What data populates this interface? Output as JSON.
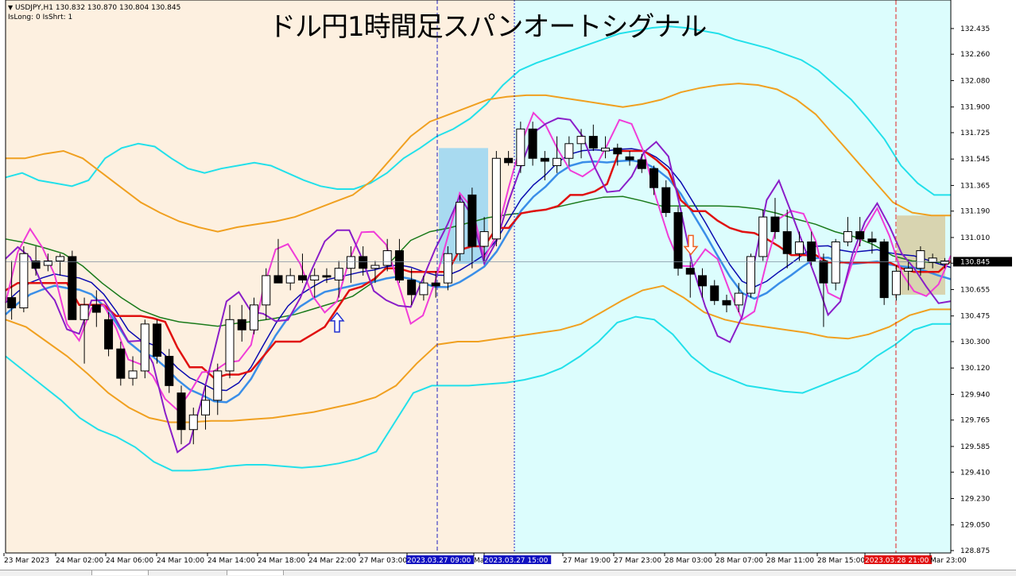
{
  "header": {
    "symbol_line": "USDJPY,H1  130.832 130.870 130.804 130.845",
    "signal_line": "IsLong: 0 IsShrt: 1",
    "menu_arrow": "triangle-down-icon"
  },
  "title": "ドル円1時間足スパンオートシグナル",
  "colors": {
    "bg_left": "#fdf0e0",
    "bg_right": "#dcfdfd",
    "candle_bull": "#ffffff",
    "candle_bear": "#000000",
    "band_outer": "#22e0ea",
    "band_mid": "#f0a020",
    "band_inner": "#1a7a1a",
    "baseline_red": "#e01010",
    "span_blue": "#3a8ee8",
    "navy": "#0b0bb0",
    "magenta": "#f03cd8",
    "purple": "#8a1ec8",
    "arrow_up": "#2030d0",
    "arrow_down": "#f06020"
  },
  "chart_data": {
    "type": "candlestick",
    "symbol": "USDJPY",
    "timeframe": "H1",
    "ylim": [
      128.875,
      132.6
    ],
    "y_ticks": [
      "132.435",
      "132.260",
      "132.080",
      "131.900",
      "131.725",
      "131.545",
      "131.365",
      "131.190",
      "131.010",
      "130.835",
      "130.655",
      "130.475",
      "130.300",
      "130.120",
      "129.940",
      "129.765",
      "129.585",
      "129.410",
      "129.230",
      "129.050",
      "128.875"
    ],
    "current_price": "130.845",
    "x_labels": [
      "23 Mar 2023",
      "24 Mar 02:00",
      "24 Mar 06:00",
      "24 Mar 10:00",
      "24 Mar 14:00",
      "24 Mar 18:00",
      "24 Mar 22:00",
      "27 Mar 03:00",
      "2023.03.27 09:00",
      "Ma",
      "2023.03.27 15:00",
      "27 Mar 19:00",
      "27 Mar 23:00",
      "28 Mar 03:00",
      "28 Mar 07:00",
      "28 Mar 11:00",
      "28 Mar 15:00",
      "2023.03.28 21:00",
      "Mar 23:00"
    ],
    "highlighted_x_labels": [
      {
        "label": "2023.03.27 09:00",
        "color": "#1010c0"
      },
      {
        "label": "2023.03.27 15:00",
        "color": "#1010c0"
      },
      {
        "label": "2023.03.28 21:00",
        "color": "#e01010"
      }
    ],
    "candles": [
      [
        130.6,
        130.85,
        130.45,
        130.53
      ],
      [
        130.53,
        130.95,
        130.5,
        130.9
      ],
      [
        130.85,
        130.95,
        130.75,
        130.8
      ],
      [
        130.82,
        130.9,
        130.78,
        130.85
      ],
      [
        130.85,
        130.9,
        130.75,
        130.88
      ],
      [
        130.88,
        130.92,
        130.45,
        130.45
      ],
      [
        130.45,
        130.6,
        130.15,
        130.55
      ],
      [
        130.55,
        130.65,
        130.4,
        130.5
      ],
      [
        130.45,
        130.5,
        130.2,
        130.25
      ],
      [
        130.25,
        130.3,
        130.0,
        130.05
      ],
      [
        130.05,
        130.2,
        130.0,
        130.1
      ],
      [
        130.1,
        130.45,
        130.05,
        130.42
      ],
      [
        130.42,
        130.45,
        130.15,
        130.2
      ],
      [
        130.2,
        130.25,
        129.95,
        130.0
      ],
      [
        129.95,
        130.0,
        129.6,
        129.7
      ],
      [
        129.7,
        129.85,
        129.6,
        129.8
      ],
      [
        129.8,
        130.0,
        129.7,
        129.9
      ],
      [
        129.9,
        130.15,
        129.8,
        130.1
      ],
      [
        130.1,
        130.55,
        130.05,
        130.45
      ],
      [
        130.45,
        130.55,
        130.3,
        130.38
      ],
      [
        130.38,
        130.6,
        130.35,
        130.55
      ],
      [
        130.55,
        130.8,
        130.45,
        130.75
      ],
      [
        130.75,
        131.0,
        130.7,
        130.7
      ],
      [
        130.7,
        130.8,
        130.65,
        130.75
      ],
      [
        130.75,
        130.9,
        130.7,
        130.72
      ],
      [
        130.72,
        130.8,
        130.6,
        130.75
      ],
      [
        130.75,
        130.8,
        130.7,
        130.74
      ],
      [
        130.72,
        130.85,
        130.6,
        130.8
      ],
      [
        130.8,
        130.95,
        130.7,
        130.88
      ],
      [
        130.88,
        130.95,
        130.75,
        130.8
      ],
      [
        130.8,
        130.85,
        130.7,
        130.82
      ],
      [
        130.82,
        131.0,
        130.78,
        130.92
      ],
      [
        130.92,
        131.0,
        130.7,
        130.72
      ],
      [
        130.72,
        130.8,
        130.55,
        130.62
      ],
      [
        130.62,
        130.75,
        130.58,
        130.7
      ],
      [
        130.7,
        130.78,
        130.6,
        130.68
      ],
      [
        130.7,
        130.95,
        130.65,
        130.9
      ],
      [
        130.9,
        131.3,
        130.85,
        131.25
      ],
      [
        131.3,
        131.35,
        130.8,
        130.95
      ],
      [
        130.95,
        131.15,
        130.85,
        131.05
      ],
      [
        131.0,
        131.6,
        130.95,
        131.55
      ],
      [
        131.55,
        131.6,
        131.5,
        131.52
      ],
      [
        131.5,
        131.8,
        131.45,
        131.75
      ],
      [
        131.75,
        131.8,
        131.5,
        131.55
      ],
      [
        131.55,
        131.6,
        131.4,
        131.53
      ],
      [
        131.5,
        131.7,
        131.45,
        131.55
      ],
      [
        131.55,
        131.7,
        131.5,
        131.65
      ],
      [
        131.65,
        131.75,
        131.55,
        131.7
      ],
      [
        131.7,
        131.78,
        131.6,
        131.62
      ],
      [
        131.6,
        131.7,
        131.55,
        131.62
      ],
      [
        131.62,
        131.65,
        131.5,
        131.58
      ],
      [
        131.56,
        131.6,
        131.5,
        131.54
      ],
      [
        131.54,
        131.58,
        131.45,
        131.48
      ],
      [
        131.48,
        131.5,
        131.3,
        131.35
      ],
      [
        131.35,
        131.4,
        131.15,
        131.18
      ],
      [
        131.18,
        131.22,
        130.75,
        130.8
      ],
      [
        130.8,
        130.85,
        130.6,
        130.76
      ],
      [
        130.75,
        130.8,
        130.6,
        130.68
      ],
      [
        130.68,
        130.72,
        130.55,
        130.58
      ],
      [
        130.58,
        130.62,
        130.5,
        130.55
      ],
      [
        130.55,
        130.7,
        130.5,
        130.63
      ],
      [
        130.63,
        130.9,
        130.6,
        130.88
      ],
      [
        130.88,
        131.2,
        130.85,
        131.15
      ],
      [
        131.15,
        131.28,
        131.0,
        131.05
      ],
      [
        131.05,
        131.2,
        130.8,
        130.9
      ],
      [
        130.9,
        131.05,
        130.85,
        130.98
      ],
      [
        130.98,
        131.05,
        130.82,
        130.85
      ],
      [
        130.85,
        130.9,
        130.4,
        130.7
      ],
      [
        130.7,
        131.0,
        130.65,
        130.98
      ],
      [
        130.98,
        131.15,
        130.95,
        131.05
      ],
      [
        131.05,
        131.15,
        130.95,
        131.0
      ],
      [
        131.0,
        131.05,
        130.9,
        130.98
      ],
      [
        130.98,
        131.0,
        130.55,
        130.6
      ],
      [
        130.62,
        130.82,
        130.58,
        130.78
      ],
      [
        130.78,
        130.85,
        130.65,
        130.8
      ],
      [
        130.8,
        130.95,
        130.75,
        130.92
      ],
      [
        130.84,
        130.9,
        130.8,
        130.87
      ],
      [
        130.83,
        130.87,
        130.8,
        130.85
      ]
    ],
    "overlays": {
      "band_outer_upper": [
        131.42,
        131.45,
        131.4,
        131.38,
        131.36,
        131.4,
        131.55,
        131.62,
        131.65,
        131.63,
        131.55,
        131.48,
        131.45,
        131.48,
        131.5,
        131.52,
        131.5,
        131.45,
        131.4,
        131.36,
        131.34,
        131.34,
        131.38,
        131.45,
        131.55,
        131.62,
        131.7,
        131.75,
        131.82,
        131.92,
        132.05,
        132.15,
        132.2,
        132.24,
        132.28,
        132.32,
        132.36,
        132.4,
        132.42,
        132.44,
        132.45,
        132.44,
        132.42,
        132.4,
        132.36,
        132.33,
        132.3,
        132.26,
        132.22,
        132.15,
        132.05,
        131.95,
        131.82,
        131.68,
        131.5,
        131.38,
        131.3,
        131.3
      ],
      "band_outer_lower": [
        130.2,
        130.1,
        130.0,
        129.9,
        129.78,
        129.7,
        129.65,
        129.58,
        129.48,
        129.42,
        129.42,
        129.43,
        129.45,
        129.46,
        129.46,
        129.45,
        129.44,
        129.45,
        129.47,
        129.5,
        129.55,
        129.75,
        129.95,
        130.0,
        130.0,
        130.0,
        130.01,
        130.02,
        130.04,
        130.07,
        130.12,
        130.2,
        130.3,
        130.43,
        130.47,
        130.45,
        130.35,
        130.2,
        130.1,
        130.05,
        130.0,
        129.98,
        129.96,
        129.95,
        130.0,
        130.05,
        130.1,
        130.2,
        130.28,
        130.38,
        130.42,
        130.42
      ],
      "band_mid_upper": [
        131.55,
        131.55,
        131.58,
        131.6,
        131.55,
        131.45,
        131.35,
        131.25,
        131.18,
        131.12,
        131.08,
        131.05,
        131.08,
        131.1,
        131.12,
        131.15,
        131.2,
        131.25,
        131.3,
        131.4,
        131.55,
        131.7,
        131.8,
        131.85,
        131.9,
        131.95,
        131.97,
        131.98,
        131.98,
        131.96,
        131.94,
        131.92,
        131.9,
        131.92,
        131.95,
        132.0,
        132.03,
        132.05,
        132.06,
        132.05,
        132.02,
        131.95,
        131.85,
        131.7,
        131.55,
        131.4,
        131.25,
        131.18,
        131.16,
        131.16
      ],
      "band_mid_lower": [
        130.45,
        130.4,
        130.3,
        130.2,
        130.08,
        129.95,
        129.85,
        129.78,
        129.75,
        129.75,
        129.76,
        129.76,
        129.77,
        129.78,
        129.8,
        129.82,
        129.85,
        129.88,
        129.92,
        130.0,
        130.15,
        130.28,
        130.3,
        130.3,
        130.32,
        130.34,
        130.36,
        130.38,
        130.42,
        130.5,
        130.58,
        130.65,
        130.68,
        130.6,
        130.5,
        130.45,
        130.42,
        130.4,
        130.38,
        130.36,
        130.33,
        130.32,
        130.35,
        130.4,
        130.48,
        130.52,
        130.52
      ]
    },
    "arrow_up": {
      "price": 130.42,
      "label": "up-arrow"
    },
    "arrow_down": {
      "price": 130.97,
      "label": "down-arrow"
    }
  }
}
